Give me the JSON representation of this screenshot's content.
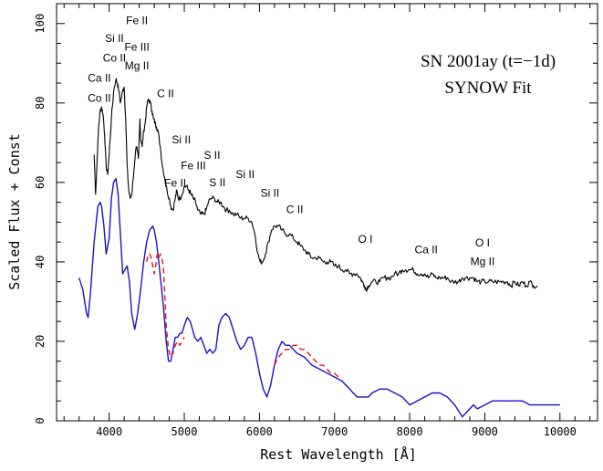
{
  "chart_data": {
    "type": "line",
    "title": [
      "SN 2001ay (t=−1d)",
      "SYNOW Fit"
    ],
    "xlabel": "Rest Wavelength [Å]",
    "ylabel": "Scaled Flux + Const",
    "xlim": [
      3300,
      10500
    ],
    "ylim": [
      0,
      105
    ],
    "xticks": [
      4000,
      5000,
      6000,
      7000,
      8000,
      9000,
      10000
    ],
    "yticks": [
      0,
      20,
      40,
      60,
      80,
      100
    ],
    "grid": false,
    "colors": {
      "observed": "#000000",
      "fit": "#1a12c8",
      "alternate_fit": "#e8141b"
    },
    "annotations": [
      {
        "text": "Ca II",
        "x": 3870,
        "y": 85.3,
        "color": "#000000"
      },
      {
        "text": "Co II",
        "x": 3870,
        "y": 80.3,
        "color": "#000000"
      },
      {
        "text": "Si II",
        "x": 4070,
        "y": 95.3,
        "color": "#000000"
      },
      {
        "text": "Co II",
        "x": 4070,
        "y": 90.4,
        "color": "#000000"
      },
      {
        "text": "Fe II",
        "x": 4370,
        "y": 99.8,
        "color": "#000000"
      },
      {
        "text": "Fe III",
        "x": 4370,
        "y": 93.2,
        "color": "#000000"
      },
      {
        "text": "Mg II",
        "x": 4370,
        "y": 88.4,
        "color": "#000000"
      },
      {
        "text": "C II",
        "x": 4750,
        "y": 81.4,
        "color": "#e8141b"
      },
      {
        "text": "Si II",
        "x": 4960,
        "y": 69.9,
        "color": "#000000"
      },
      {
        "text": "Fe III",
        "x": 5120,
        "y": 63.3,
        "color": "#000000"
      },
      {
        "text": "S II",
        "x": 5370,
        "y": 65.9,
        "color": "#000000"
      },
      {
        "text": "Fe II",
        "x": 4880,
        "y": 58.9,
        "color": "#000000"
      },
      {
        "text": "S II",
        "x": 5440,
        "y": 59.1,
        "color": "#000000"
      },
      {
        "text": "Si II",
        "x": 5810,
        "y": 61.1,
        "color": "#000000"
      },
      {
        "text": "Si II",
        "x": 6140,
        "y": 56.4,
        "color": "#000000"
      },
      {
        "text": "C II",
        "x": 6470,
        "y": 52.3,
        "color": "#e8141b"
      },
      {
        "text": "O I",
        "x": 7410,
        "y": 44.8,
        "color": "#000000"
      },
      {
        "text": "Ca II",
        "x": 8220,
        "y": 42.2,
        "color": "#000000"
      },
      {
        "text": "O I",
        "x": 8970,
        "y": 43.9,
        "color": "#000000"
      },
      {
        "text": "Mg II",
        "x": 8970,
        "y": 39.2,
        "color": "#000000"
      }
    ],
    "series": [
      {
        "color": "#000000",
        "style": "solid",
        "x": [
          3800,
          3820,
          3840,
          3860,
          3880,
          3900,
          3920,
          3940,
          3960,
          3980,
          4000,
          4030,
          4060,
          4090,
          4110,
          4130,
          4150,
          4180,
          4200,
          4220,
          4240,
          4260,
          4280,
          4300,
          4330,
          4360,
          4390,
          4410,
          4420,
          4440,
          4460,
          4480,
          4500,
          4520,
          4550,
          4570,
          4590,
          4610,
          4630,
          4650,
          4680,
          4710,
          4740,
          4770,
          4800,
          4820,
          4850,
          4880,
          4900,
          4920,
          4940,
          4970,
          5000,
          5030,
          5060,
          5090,
          5120,
          5150,
          5180,
          5220,
          5260,
          5290,
          5320,
          5360,
          5400,
          5440,
          5480,
          5520,
          5560,
          5600,
          5650,
          5700,
          5750,
          5800,
          5850,
          5900,
          5940,
          5980,
          6010,
          6040,
          6080,
          6120,
          6160,
          6200,
          6250,
          6300,
          6350,
          6400,
          6450,
          6500,
          6550,
          6600,
          6650,
          6700,
          6750,
          6800,
          6850,
          6900,
          6950,
          7000,
          7050,
          7100,
          7150,
          7200,
          7250,
          7300,
          7340,
          7370,
          7400,
          7420,
          7450,
          7500,
          7550,
          7600,
          7650,
          7700,
          7750,
          7800,
          7850,
          7900,
          7950,
          8000,
          8050,
          8100,
          8150,
          8200,
          8250,
          8300,
          8350,
          8400,
          8450,
          8500,
          8550,
          8600,
          8650,
          8700,
          8750,
          8800,
          8850,
          8900,
          8950,
          9000,
          9050,
          9100,
          9150,
          9200,
          9250,
          9300,
          9350,
          9400,
          9450,
          9500,
          9550,
          9600,
          9650,
          9700
        ],
        "y": [
          67,
          57,
          66,
          74,
          78,
          79,
          77,
          72,
          64,
          62,
          67,
          76,
          83,
          86,
          85,
          83,
          80,
          83,
          84,
          76,
          64,
          58,
          56,
          57,
          63,
          69,
          66,
          76,
          71,
          69,
          73,
          75,
          79,
          81,
          80,
          78,
          76,
          75,
          74,
          73,
          69,
          64,
          61,
          58,
          56,
          54,
          53,
          56,
          58,
          56,
          56,
          57,
          59,
          59,
          58,
          57,
          56,
          55,
          53,
          52,
          52,
          53,
          55,
          56,
          56,
          55,
          55,
          54,
          53,
          53,
          52,
          52,
          51,
          51,
          51,
          50,
          47,
          42,
          40,
          40,
          42,
          45,
          48,
          49,
          49,
          48,
          47,
          47,
          46,
          45,
          44,
          43,
          42,
          41,
          41,
          41,
          40,
          40,
          40,
          39,
          39,
          38,
          38,
          37,
          37,
          37,
          36,
          35,
          34,
          33,
          34,
          35,
          35,
          35,
          36,
          36,
          36,
          37,
          37,
          38,
          38,
          38,
          38,
          37,
          37,
          37,
          36,
          37,
          36,
          36,
          36,
          36,
          35,
          35,
          35,
          36,
          36,
          36,
          36,
          35,
          35,
          35,
          35,
          35,
          35,
          35,
          35,
          35,
          34,
          35,
          34,
          35,
          34,
          35,
          34,
          34
        ]
      },
      {
        "color": "#1a12c8",
        "style": "solid",
        "x": [
          3600,
          3650,
          3700,
          3720,
          3750,
          3800,
          3850,
          3880,
          3900,
          3930,
          3960,
          4000,
          4030,
          4060,
          4090,
          4120,
          4150,
          4180,
          4210,
          4240,
          4270,
          4300,
          4340,
          4380,
          4420,
          4460,
          4500,
          4540,
          4580,
          4600,
          4630,
          4660,
          4700,
          4730,
          4760,
          4790,
          4820,
          4850,
          4880,
          4910,
          4940,
          4970,
          5000,
          5040,
          5080,
          5110,
          5140,
          5180,
          5220,
          5260,
          5300,
          5340,
          5380,
          5420,
          5460,
          5500,
          5550,
          5600,
          5650,
          5700,
          5750,
          5800,
          5850,
          5900,
          5950,
          6000,
          6050,
          6100,
          6150,
          6200,
          6250,
          6300,
          6350,
          6400,
          6450,
          6500,
          6600,
          6700,
          6800,
          6900,
          7000,
          7100,
          7200,
          7300,
          7400,
          7450,
          7500,
          7600,
          7700,
          7800,
          7900,
          8000,
          8100,
          8200,
          8300,
          8400,
          8500,
          8600,
          8700,
          8800,
          8850,
          8900,
          9000,
          9100,
          9200,
          9300,
          9400,
          9500,
          9600,
          9700,
          9800,
          9900,
          10000
        ],
        "y": [
          36,
          33,
          27,
          26,
          32,
          45,
          54,
          55,
          54,
          49,
          42,
          46,
          56,
          60,
          61,
          57,
          47,
          37,
          38,
          39,
          35,
          27,
          23,
          27,
          33,
          40,
          45,
          48,
          49,
          48,
          45,
          40,
          33,
          27,
          20,
          15,
          15,
          18,
          21,
          21,
          22,
          22,
          24,
          26,
          25,
          23,
          21,
          20,
          21,
          19,
          17,
          18,
          17,
          18,
          24,
          26,
          27,
          26,
          23,
          20,
          18,
          19,
          21,
          21,
          17,
          12,
          8,
          6,
          9,
          14,
          18,
          20,
          19,
          19,
          18,
          17,
          16,
          14,
          13,
          12,
          11,
          10,
          8,
          6,
          6,
          6,
          7,
          8,
          8,
          7,
          6,
          4,
          5,
          6,
          7,
          7,
          6,
          4,
          1,
          3,
          4,
          3,
          4,
          5,
          5,
          5,
          5,
          5,
          4,
          4,
          4,
          4,
          4
        ]
      },
      {
        "color": "#e8141b",
        "style": "dashed",
        "x": [
          4500,
          4520,
          4540,
          4560,
          4580,
          4600,
          4620,
          4640,
          4660,
          4680,
          4700,
          4720,
          4740,
          4760,
          4790,
          4820,
          4850,
          4880,
          4910,
          4940,
          4970,
          5000,
          6200,
          6250,
          6300,
          6350,
          6400,
          6450,
          6500,
          6550,
          6600,
          6650,
          6700,
          6750,
          6800,
          6850,
          6900,
          6950,
          7000,
          7050
        ],
        "y": [
          40,
          42,
          42,
          41,
          39,
          37,
          39,
          42,
          41,
          42,
          41,
          39,
          32,
          24,
          18,
          16,
          17,
          19,
          20,
          19,
          20,
          21,
          14,
          16,
          17,
          18,
          18,
          19,
          19,
          18,
          18,
          17,
          16,
          15,
          14,
          14,
          13,
          12,
          12,
          11
        ]
      }
    ]
  }
}
